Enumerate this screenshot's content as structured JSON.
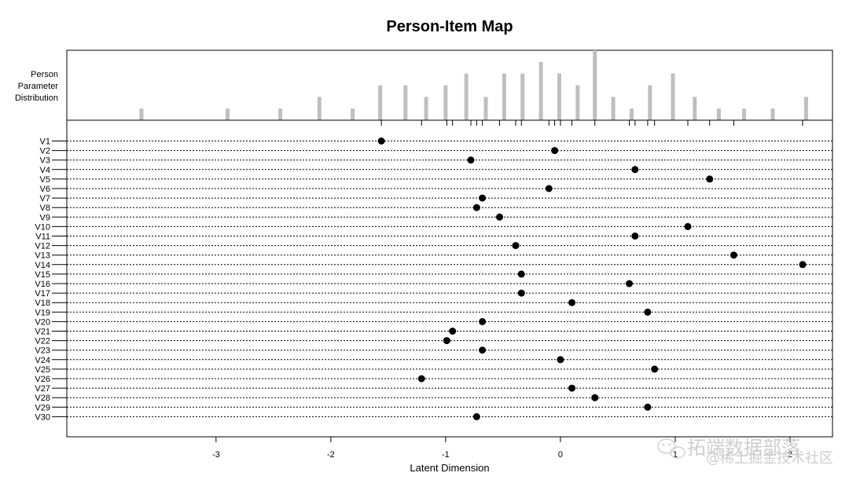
{
  "chart_data": {
    "type": "scatter",
    "title": "Person-Item Map",
    "xlabel": "Latent Dimension",
    "xlim": [
      -4.3,
      2.37
    ],
    "x_ticks": [
      -3,
      -2,
      -1,
      0,
      1,
      2
    ],
    "x_tick_labels": [
      "-3",
      "-2",
      "-1",
      "0",
      "1",
      "2"
    ],
    "person_panel_label": [
      "Person",
      "Parameter",
      "Distribution"
    ],
    "person_distribution": {
      "x": [
        -3.65,
        -2.9,
        -2.44,
        -2.1,
        -1.81,
        -1.57,
        -1.35,
        -1.17,
        -1.0,
        -0.82,
        -0.65,
        -0.49,
        -0.33,
        -0.17,
        -0.01,
        0.15,
        0.3,
        0.46,
        0.62,
        0.78,
        0.98,
        1.17,
        1.38,
        1.6,
        1.85,
        2.14
      ],
      "counts": [
        1,
        1,
        1,
        2,
        1,
        3,
        3,
        2,
        3,
        4,
        2,
        4,
        4,
        5,
        4,
        3,
        6,
        2,
        1,
        3,
        4,
        2,
        1,
        1,
        1,
        2
      ],
      "ylim": [
        0,
        6
      ]
    },
    "items": [
      "V1",
      "V2",
      "V3",
      "V4",
      "V5",
      "V6",
      "V7",
      "V8",
      "V9",
      "V10",
      "V11",
      "V12",
      "V13",
      "V14",
      "V15",
      "V16",
      "V17",
      "V18",
      "V19",
      "V20",
      "V21",
      "V22",
      "V23",
      "V24",
      "V25",
      "V26",
      "V27",
      "V28",
      "V29",
      "V30"
    ],
    "difficulty": [
      -1.56,
      -0.05,
      -0.78,
      0.65,
      1.3,
      -0.1,
      -0.68,
      -0.73,
      -0.53,
      1.11,
      0.65,
      -0.39,
      1.51,
      2.11,
      -0.34,
      0.6,
      -0.34,
      0.1,
      0.76,
      -0.68,
      -0.94,
      -0.99,
      -0.68,
      0.0,
      0.82,
      -1.21,
      0.1,
      0.3,
      0.76,
      -0.73
    ],
    "threshold_ticks": [
      -1.56,
      -1.21,
      -0.99,
      -0.94,
      -0.78,
      -0.73,
      -0.68,
      -0.53,
      -0.39,
      -0.34,
      -0.1,
      -0.05,
      0.0,
      0.1,
      0.3,
      0.6,
      0.65,
      0.76,
      0.82,
      1.11,
      1.3,
      1.51,
      2.11
    ],
    "grid": true
  },
  "watermark": {
    "line1": "拓端数据部落",
    "line2": "@稀土掘金技术社区"
  }
}
